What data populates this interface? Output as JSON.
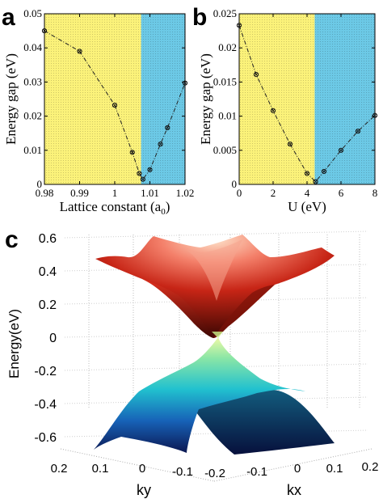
{
  "chart_data": [
    {
      "panel": "a",
      "type": "line",
      "xlabel": "Lattice constant (a",
      "xlabel_sub": "0",
      "xlabel_end": ")",
      "ylabel": "Energy gap (eV)",
      "xlim": [
        0.98,
        1.02
      ],
      "ylim": [
        0,
        0.05
      ],
      "xticks": [
        "0.98",
        "0.99",
        "1",
        "1.01",
        "1.02"
      ],
      "xtick_values": [
        0.98,
        0.99,
        1.0,
        1.01,
        1.02
      ],
      "yticks": [
        "0",
        "0.01",
        "0.02",
        "0.03",
        "0.04",
        "0.05"
      ],
      "ytick_values": [
        0,
        0.01,
        0.02,
        0.03,
        0.04,
        0.05
      ],
      "regions": [
        {
          "from": 0.98,
          "to": 1.0075,
          "color": "#fbf27a"
        },
        {
          "from": 1.0075,
          "to": 1.02,
          "color": "#6cc9e6"
        }
      ],
      "x": [
        0.98,
        0.99,
        1.0,
        1.005,
        1.007,
        1.008,
        1.01,
        1.013,
        1.015,
        1.02
      ],
      "y": [
        0.045,
        0.039,
        0.0232,
        0.0094,
        0.0032,
        0.0015,
        0.0043,
        0.0118,
        0.0166,
        0.0297
      ],
      "grid": false,
      "legend": "none"
    },
    {
      "panel": "b",
      "type": "line",
      "xlabel": "U (eV)",
      "ylabel": "Energy gap (eV)",
      "xlim": [
        0,
        8
      ],
      "ylim": [
        0,
        0.025
      ],
      "xticks": [
        "0",
        "2",
        "4",
        "6",
        "8"
      ],
      "xtick_values": [
        0,
        2,
        4,
        6,
        8
      ],
      "yticks": [
        "0",
        "0.005",
        "0.01",
        "0.015",
        "0.02",
        "0.025"
      ],
      "ytick_values": [
        0,
        0.005,
        0.01,
        0.015,
        0.02,
        0.025
      ],
      "regions": [
        {
          "from": 0,
          "to": 4.45,
          "color": "#fbf27a"
        },
        {
          "from": 4.45,
          "to": 8,
          "color": "#6cc9e6"
        }
      ],
      "x": [
        0,
        1,
        2,
        3,
        4,
        4.5,
        5,
        6,
        7,
        8
      ],
      "y": [
        0.0233,
        0.0161,
        0.0108,
        0.0059,
        0.0016,
        0.0004,
        0.0019,
        0.005,
        0.0078,
        0.0101
      ],
      "grid": false,
      "legend": "none"
    },
    {
      "panel": "c",
      "type": "surface",
      "zlabel": "Energy(eV)",
      "ylabel": "ky",
      "xlabel": "kx",
      "zlim": [
        -0.7,
        0.6
      ],
      "zticks": [
        "0.6",
        "0.4",
        "0.2",
        "0",
        "-0.2",
        "-0.4",
        "-0.6"
      ],
      "ztick_values": [
        0.6,
        0.4,
        0.2,
        0,
        -0.2,
        -0.4,
        -0.6
      ],
      "ky_ticks": [
        "0.2",
        "0.1",
        "0",
        "-0.1",
        "-0.2"
      ],
      "kx_ticks": [
        "-0.1",
        "0",
        "0.1",
        "0.2"
      ],
      "ky_range": [
        -0.2,
        0.2
      ],
      "kx_range": [
        -0.2,
        0.2
      ],
      "bands": [
        {
          "name": "conduction",
          "max_energy": 0.5,
          "min_energy": 0.01,
          "colors": [
            "#fde8d0",
            "#e33a2a",
            "#5a0d06"
          ]
        },
        {
          "name": "valence",
          "max_energy": -0.01,
          "min_energy": -0.65,
          "colors": [
            "#ecf9a0",
            "#25d6c6",
            "#0c1c58"
          ]
        }
      ],
      "grid": true
    }
  ]
}
